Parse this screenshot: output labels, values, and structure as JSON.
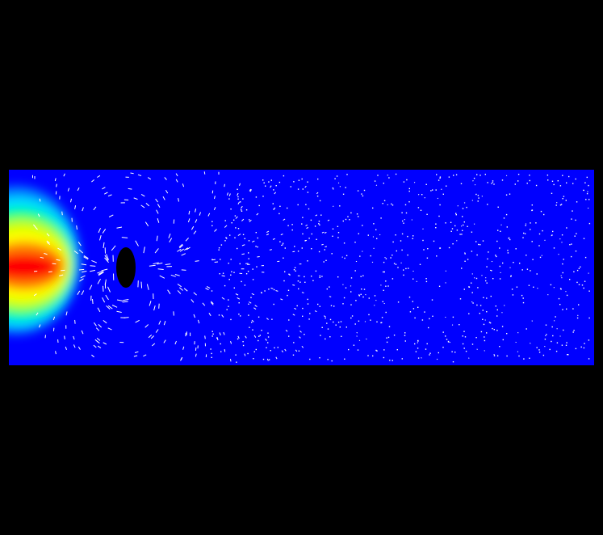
{
  "scene": {
    "background_color": "#000000",
    "field_base_color": "#0000ff",
    "colormap": [
      "#0000ff",
      "#0080ff",
      "#00e0ff",
      "#00ff80",
      "#c0ff00",
      "#ffff00",
      "#ff8000",
      "#ff0000"
    ],
    "vector_color": "#ffffff",
    "obstacle_color": "#000000",
    "obstacle_shape": "ellipse",
    "flow_direction": "left-to-right",
    "inlet_plume_peak_value": 1.0,
    "inlet_plume_description_value_levels": [
      1.0,
      0.85,
      0.7,
      0.55,
      0.4,
      0.25,
      0.1
    ]
  }
}
